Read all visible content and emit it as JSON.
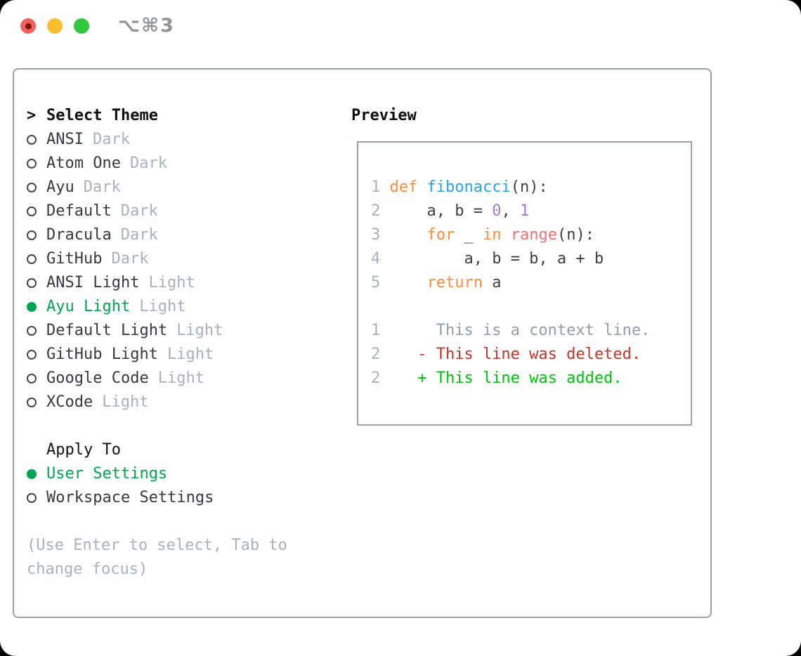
{
  "window": {
    "title": "⌥⌘3",
    "traffic_lights": [
      {
        "name": "close",
        "color": "#f4615b"
      },
      {
        "name": "minimize",
        "color": "#f9bd2f"
      },
      {
        "name": "zoom",
        "color": "#32c53f"
      }
    ]
  },
  "theme_panel": {
    "header_prefix": ">",
    "header": "Select Theme",
    "themes": [
      {
        "name": "ANSI",
        "variant": "Dark",
        "selected": false
      },
      {
        "name": "Atom One",
        "variant": "Dark",
        "selected": false
      },
      {
        "name": "Ayu",
        "variant": "Dark",
        "selected": false
      },
      {
        "name": "Default",
        "variant": "Dark",
        "selected": false
      },
      {
        "name": "Dracula",
        "variant": "Dark",
        "selected": false
      },
      {
        "name": "GitHub",
        "variant": "Dark",
        "selected": false
      },
      {
        "name": "ANSI Light",
        "variant": "Light",
        "selected": false
      },
      {
        "name": "Ayu Light",
        "variant": "Light",
        "selected": true
      },
      {
        "name": "Default Light",
        "variant": "Light",
        "selected": false
      },
      {
        "name": "GitHub Light",
        "variant": "Light",
        "selected": false
      },
      {
        "name": "Google Code",
        "variant": "Light",
        "selected": false
      },
      {
        "name": "XCode",
        "variant": "Light",
        "selected": false
      }
    ],
    "apply_to": {
      "header": "Apply To",
      "options": [
        {
          "name": "User Settings",
          "selected": true
        },
        {
          "name": "Workspace Settings",
          "selected": false
        }
      ]
    },
    "hint": "(Use Enter to select, Tab to change focus)"
  },
  "preview": {
    "header": "Preview",
    "lines": [
      {
        "kind": "code",
        "segments": [
          [
            "1 ",
            "lineno"
          ],
          [
            "def",
            "keyword"
          ],
          [
            " ",
            "plain"
          ],
          [
            "fibonacci",
            "function"
          ],
          [
            "(n):",
            "plain"
          ]
        ]
      },
      {
        "kind": "code",
        "segments": [
          [
            "2 ",
            "lineno"
          ],
          [
            "    a, b = ",
            "plain"
          ],
          [
            "0",
            "number"
          ],
          [
            ", ",
            "plain"
          ],
          [
            "1",
            "number"
          ]
        ]
      },
      {
        "kind": "code",
        "segments": [
          [
            "3 ",
            "lineno"
          ],
          [
            "    ",
            "plain"
          ],
          [
            "for",
            "keyword"
          ],
          [
            " _ ",
            "plain"
          ],
          [
            "in",
            "keyword"
          ],
          [
            " ",
            "plain"
          ],
          [
            "range",
            "call"
          ],
          [
            "(n):",
            "plain"
          ]
        ]
      },
      {
        "kind": "code",
        "segments": [
          [
            "4 ",
            "lineno"
          ],
          [
            "        a, b = b, a + b",
            "plain"
          ]
        ]
      },
      {
        "kind": "code",
        "segments": [
          [
            "5 ",
            "lineno"
          ],
          [
            "    ",
            "plain"
          ],
          [
            "return",
            "keyword"
          ],
          [
            " a",
            "plain"
          ]
        ]
      },
      {
        "kind": "blank",
        "segments": []
      },
      {
        "kind": "diff-context",
        "segments": [
          [
            "1",
            "lineno"
          ],
          [
            "      This is a context line.",
            "context"
          ]
        ]
      },
      {
        "kind": "diff-deleted",
        "segments": [
          [
            "2",
            "lineno"
          ],
          [
            "    - This line was deleted.",
            "deleted"
          ]
        ]
      },
      {
        "kind": "diff-added",
        "segments": [
          [
            "2",
            "lineno"
          ],
          [
            "    + This line was added.",
            "added"
          ]
        ]
      }
    ]
  },
  "colors": {
    "accent_green": "#00a651",
    "keyword_orange": "#fa8d3e",
    "function_blue": "#2aa3e8",
    "number_purple": "#a37acc",
    "call_coral": "#f07171",
    "deleted_red": "#c2352a",
    "added_green": "#00c30c",
    "muted_gray": "#a9b1bc",
    "context_gray": "#949da7",
    "text_dark": "#36393f",
    "heading_black": "#0c0e10",
    "border_gray": "#99a1ab",
    "title_gray": "#8f9298",
    "traffic_red": "#f4615b",
    "traffic_yellow": "#f9bd2f",
    "traffic_green": "#32c53f"
  }
}
